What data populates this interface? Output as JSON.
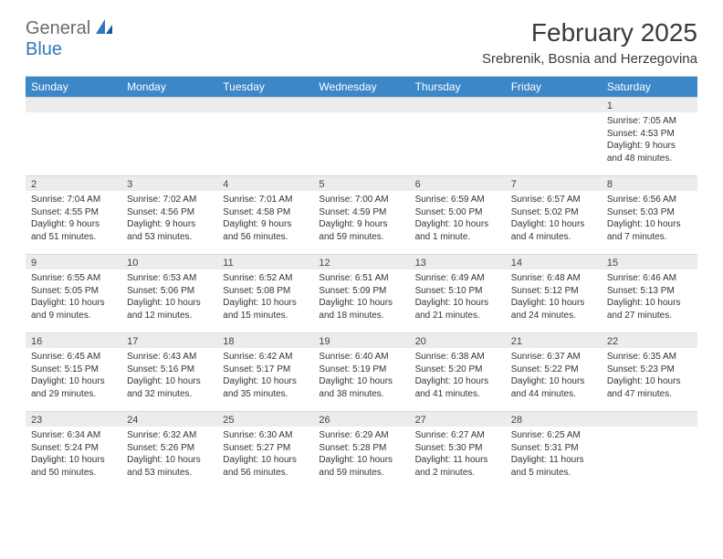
{
  "brand": {
    "part1": "General",
    "part2": "Blue"
  },
  "header": {
    "title": "February 2025",
    "location": "Srebrenik, Bosnia and Herzegovina"
  },
  "colors": {
    "header_bar": "#3b87c8",
    "daynum_bg": "#ececec",
    "border": "#d8d8d8",
    "text": "#333333",
    "logo_gray": "#6b6b6b",
    "logo_blue": "#2f78bf"
  },
  "weekdays": [
    "Sunday",
    "Monday",
    "Tuesday",
    "Wednesday",
    "Thursday",
    "Friday",
    "Saturday"
  ],
  "weeks": [
    [
      {
        "day": "",
        "sunrise": "",
        "sunset": "",
        "daylight": ""
      },
      {
        "day": "",
        "sunrise": "",
        "sunset": "",
        "daylight": ""
      },
      {
        "day": "",
        "sunrise": "",
        "sunset": "",
        "daylight": ""
      },
      {
        "day": "",
        "sunrise": "",
        "sunset": "",
        "daylight": ""
      },
      {
        "day": "",
        "sunrise": "",
        "sunset": "",
        "daylight": ""
      },
      {
        "day": "",
        "sunrise": "",
        "sunset": "",
        "daylight": ""
      },
      {
        "day": "1",
        "sunrise": "Sunrise: 7:05 AM",
        "sunset": "Sunset: 4:53 PM",
        "daylight": "Daylight: 9 hours and 48 minutes."
      }
    ],
    [
      {
        "day": "2",
        "sunrise": "Sunrise: 7:04 AM",
        "sunset": "Sunset: 4:55 PM",
        "daylight": "Daylight: 9 hours and 51 minutes."
      },
      {
        "day": "3",
        "sunrise": "Sunrise: 7:02 AM",
        "sunset": "Sunset: 4:56 PM",
        "daylight": "Daylight: 9 hours and 53 minutes."
      },
      {
        "day": "4",
        "sunrise": "Sunrise: 7:01 AM",
        "sunset": "Sunset: 4:58 PM",
        "daylight": "Daylight: 9 hours and 56 minutes."
      },
      {
        "day": "5",
        "sunrise": "Sunrise: 7:00 AM",
        "sunset": "Sunset: 4:59 PM",
        "daylight": "Daylight: 9 hours and 59 minutes."
      },
      {
        "day": "6",
        "sunrise": "Sunrise: 6:59 AM",
        "sunset": "Sunset: 5:00 PM",
        "daylight": "Daylight: 10 hours and 1 minute."
      },
      {
        "day": "7",
        "sunrise": "Sunrise: 6:57 AM",
        "sunset": "Sunset: 5:02 PM",
        "daylight": "Daylight: 10 hours and 4 minutes."
      },
      {
        "day": "8",
        "sunrise": "Sunrise: 6:56 AM",
        "sunset": "Sunset: 5:03 PM",
        "daylight": "Daylight: 10 hours and 7 minutes."
      }
    ],
    [
      {
        "day": "9",
        "sunrise": "Sunrise: 6:55 AM",
        "sunset": "Sunset: 5:05 PM",
        "daylight": "Daylight: 10 hours and 9 minutes."
      },
      {
        "day": "10",
        "sunrise": "Sunrise: 6:53 AM",
        "sunset": "Sunset: 5:06 PM",
        "daylight": "Daylight: 10 hours and 12 minutes."
      },
      {
        "day": "11",
        "sunrise": "Sunrise: 6:52 AM",
        "sunset": "Sunset: 5:08 PM",
        "daylight": "Daylight: 10 hours and 15 minutes."
      },
      {
        "day": "12",
        "sunrise": "Sunrise: 6:51 AM",
        "sunset": "Sunset: 5:09 PM",
        "daylight": "Daylight: 10 hours and 18 minutes."
      },
      {
        "day": "13",
        "sunrise": "Sunrise: 6:49 AM",
        "sunset": "Sunset: 5:10 PM",
        "daylight": "Daylight: 10 hours and 21 minutes."
      },
      {
        "day": "14",
        "sunrise": "Sunrise: 6:48 AM",
        "sunset": "Sunset: 5:12 PM",
        "daylight": "Daylight: 10 hours and 24 minutes."
      },
      {
        "day": "15",
        "sunrise": "Sunrise: 6:46 AM",
        "sunset": "Sunset: 5:13 PM",
        "daylight": "Daylight: 10 hours and 27 minutes."
      }
    ],
    [
      {
        "day": "16",
        "sunrise": "Sunrise: 6:45 AM",
        "sunset": "Sunset: 5:15 PM",
        "daylight": "Daylight: 10 hours and 29 minutes."
      },
      {
        "day": "17",
        "sunrise": "Sunrise: 6:43 AM",
        "sunset": "Sunset: 5:16 PM",
        "daylight": "Daylight: 10 hours and 32 minutes."
      },
      {
        "day": "18",
        "sunrise": "Sunrise: 6:42 AM",
        "sunset": "Sunset: 5:17 PM",
        "daylight": "Daylight: 10 hours and 35 minutes."
      },
      {
        "day": "19",
        "sunrise": "Sunrise: 6:40 AM",
        "sunset": "Sunset: 5:19 PM",
        "daylight": "Daylight: 10 hours and 38 minutes."
      },
      {
        "day": "20",
        "sunrise": "Sunrise: 6:38 AM",
        "sunset": "Sunset: 5:20 PM",
        "daylight": "Daylight: 10 hours and 41 minutes."
      },
      {
        "day": "21",
        "sunrise": "Sunrise: 6:37 AM",
        "sunset": "Sunset: 5:22 PM",
        "daylight": "Daylight: 10 hours and 44 minutes."
      },
      {
        "day": "22",
        "sunrise": "Sunrise: 6:35 AM",
        "sunset": "Sunset: 5:23 PM",
        "daylight": "Daylight: 10 hours and 47 minutes."
      }
    ],
    [
      {
        "day": "23",
        "sunrise": "Sunrise: 6:34 AM",
        "sunset": "Sunset: 5:24 PM",
        "daylight": "Daylight: 10 hours and 50 minutes."
      },
      {
        "day": "24",
        "sunrise": "Sunrise: 6:32 AM",
        "sunset": "Sunset: 5:26 PM",
        "daylight": "Daylight: 10 hours and 53 minutes."
      },
      {
        "day": "25",
        "sunrise": "Sunrise: 6:30 AM",
        "sunset": "Sunset: 5:27 PM",
        "daylight": "Daylight: 10 hours and 56 minutes."
      },
      {
        "day": "26",
        "sunrise": "Sunrise: 6:29 AM",
        "sunset": "Sunset: 5:28 PM",
        "daylight": "Daylight: 10 hours and 59 minutes."
      },
      {
        "day": "27",
        "sunrise": "Sunrise: 6:27 AM",
        "sunset": "Sunset: 5:30 PM",
        "daylight": "Daylight: 11 hours and 2 minutes."
      },
      {
        "day": "28",
        "sunrise": "Sunrise: 6:25 AM",
        "sunset": "Sunset: 5:31 PM",
        "daylight": "Daylight: 11 hours and 5 minutes."
      },
      {
        "day": "",
        "sunrise": "",
        "sunset": "",
        "daylight": ""
      }
    ]
  ]
}
